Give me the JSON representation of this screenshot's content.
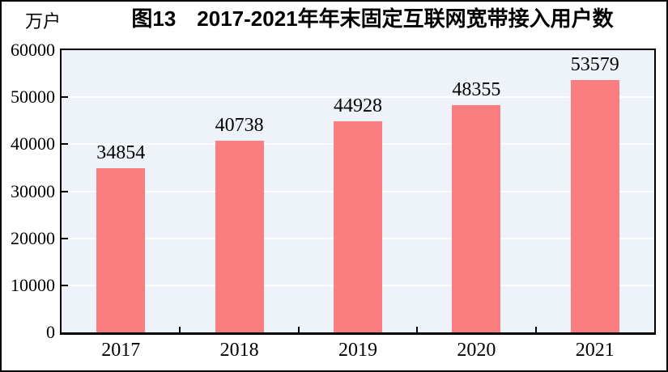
{
  "figure": {
    "title": "图13　2017-2021年年末固定互联网宽带接入用户数",
    "unit_label": "万户"
  },
  "chart_data": {
    "type": "bar",
    "title": "图13　2017-2021年年末固定互联网宽带接入用户数",
    "unit": "万户",
    "categories": [
      "2017",
      "2018",
      "2019",
      "2020",
      "2021"
    ],
    "values": [
      34854,
      40738,
      44928,
      48355,
      53579
    ],
    "data_labels": [
      "34854",
      "40738",
      "44928",
      "48355",
      "53579"
    ],
    "xlabel": "",
    "ylabel": "万户",
    "ylim": [
      0,
      60000
    ],
    "ytick_interval": 10000,
    "ytick_labels": [
      "0",
      "10000",
      "20000",
      "30000",
      "40000",
      "50000",
      "60000"
    ],
    "grid": "horizontal",
    "legend": "none",
    "colors": {
      "bar": "#FA7D7F",
      "plot_background": "#EDF3F8",
      "gridline": "#FFFFFF",
      "axis": "#000000",
      "text": "#000000"
    }
  }
}
